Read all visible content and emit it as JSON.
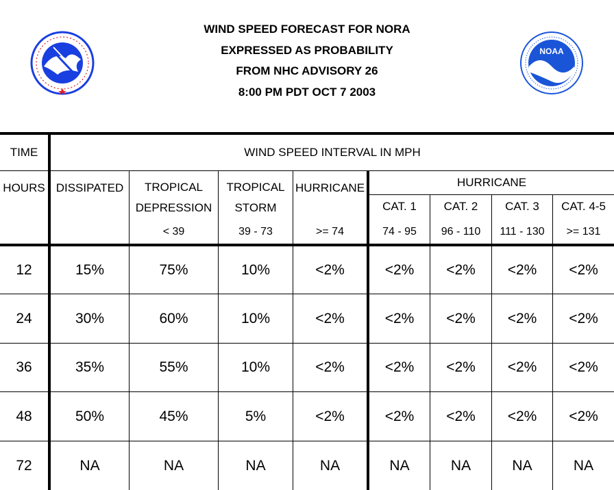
{
  "title": {
    "line1": "WIND SPEED FORECAST FOR NORA",
    "line2": "EXPRESSED AS PROBABILITY",
    "line3": "FROM NHC ADVISORY   26",
    "line4": "8:00 PM PDT OCT 7 2003"
  },
  "logos": {
    "nws": {
      "icon": "national-weather-service-seal",
      "color": "#1a3fe0",
      "accent": "#e0202a"
    },
    "noaa": {
      "icon": "noaa-seal",
      "text": "NOAA",
      "color": "#1a55d8"
    }
  },
  "table": {
    "time_header": "TIME",
    "interval_header": "WIND SPEED INTERVAL IN MPH",
    "hours_header": "HOURS",
    "dissipated_header": "DISSIPATED",
    "td_header_line1": "TROPICAL",
    "td_header_line2": "DEPRESSION",
    "td_range": "< 39",
    "ts_header_line1": "TROPICAL",
    "ts_header_line2": "STORM",
    "ts_range": "39 - 73",
    "hur_header": "HURRICANE",
    "hur_range": ">= 74",
    "hur_group_header": "HURRICANE",
    "categories": [
      {
        "label": "CAT. 1",
        "range": "74 - 95"
      },
      {
        "label": "CAT. 2",
        "range": "96 - 110"
      },
      {
        "label": "CAT. 3",
        "range": "111 - 130"
      },
      {
        "label": "CAT. 4-5",
        "range": ">= 131"
      }
    ],
    "rows": [
      {
        "hours": "12",
        "values": [
          "15%",
          "75%",
          "10%",
          "<2%",
          "<2%",
          "<2%",
          "<2%",
          "<2%"
        ]
      },
      {
        "hours": "24",
        "values": [
          "30%",
          "60%",
          "10%",
          "<2%",
          "<2%",
          "<2%",
          "<2%",
          "<2%"
        ]
      },
      {
        "hours": "36",
        "values": [
          "35%",
          "55%",
          "10%",
          "<2%",
          "<2%",
          "<2%",
          "<2%",
          "<2%"
        ]
      },
      {
        "hours": "48",
        "values": [
          "50%",
          "45%",
          "5%",
          "<2%",
          "<2%",
          "<2%",
          "<2%",
          "<2%"
        ]
      },
      {
        "hours": "72",
        "values": [
          "NA",
          "NA",
          "NA",
          "NA",
          "NA",
          "NA",
          "NA",
          "NA"
        ]
      }
    ]
  }
}
